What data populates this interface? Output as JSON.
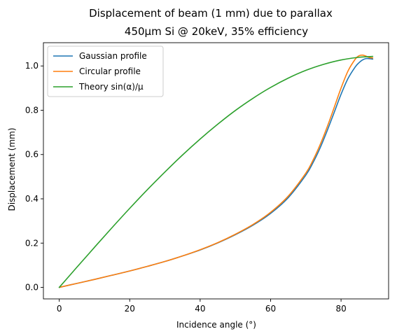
{
  "chart_data": {
    "type": "line",
    "title": "Displacement of beam (1 mm) due to parallax",
    "subtitle": "450µm Si @ 20keV, 35% efficiency",
    "xlabel": "Incidence angle (°)",
    "ylabel": "Displacement (mm)",
    "xlim": [
      -4.5,
      93.5
    ],
    "ylim": [
      -0.052,
      1.105
    ],
    "xticks": [
      0,
      20,
      40,
      60,
      80
    ],
    "yticks": [
      0.0,
      0.2,
      0.4,
      0.6,
      0.8,
      1.0
    ],
    "xtick_labels": [
      "0",
      "20",
      "40",
      "60",
      "80"
    ],
    "ytick_labels": [
      "0.0",
      "0.2",
      "0.4",
      "0.6",
      "0.8",
      "1.0"
    ],
    "grid": false,
    "legend_position": "top-left",
    "series": [
      {
        "name": "Gaussian profile",
        "color": "#1f77b4",
        "x": [
          0,
          5,
          10,
          15,
          20,
          25,
          30,
          35,
          40,
          45,
          50,
          55,
          60,
          65,
          70,
          72,
          74,
          76,
          78,
          80,
          82,
          84,
          85,
          86,
          87,
          88,
          89
        ],
        "y": [
          0.0,
          0.018,
          0.036,
          0.055,
          0.074,
          0.095,
          0.117,
          0.142,
          0.169,
          0.201,
          0.238,
          0.281,
          0.334,
          0.405,
          0.507,
          0.562,
          0.628,
          0.705,
          0.788,
          0.872,
          0.944,
          0.995,
          1.013,
          1.026,
          1.033,
          1.033,
          1.031
        ]
      },
      {
        "name": "Circular profile",
        "color": "#ff7f0e",
        "x": [
          0,
          5,
          10,
          15,
          20,
          25,
          30,
          35,
          40,
          45,
          50,
          55,
          60,
          65,
          70,
          72,
          74,
          76,
          78,
          80,
          82,
          84,
          85,
          86,
          87,
          88,
          89
        ],
        "y": [
          0.0,
          0.018,
          0.036,
          0.055,
          0.074,
          0.095,
          0.117,
          0.142,
          0.17,
          0.202,
          0.24,
          0.284,
          0.339,
          0.412,
          0.516,
          0.573,
          0.642,
          0.722,
          0.81,
          0.9,
          0.978,
          1.03,
          1.045,
          1.049,
          1.045,
          1.038,
          1.036
        ]
      },
      {
        "name": "Theory sin(α)/μ",
        "color": "#2ca02c",
        "x": [
          0,
          5,
          10,
          15,
          20,
          25,
          30,
          35,
          40,
          45,
          50,
          55,
          60,
          65,
          70,
          75,
          80,
          85,
          89
        ],
        "y": [
          0.0,
          0.091,
          0.181,
          0.27,
          0.357,
          0.441,
          0.521,
          0.598,
          0.67,
          0.737,
          0.799,
          0.854,
          0.903,
          0.945,
          0.98,
          1.007,
          1.027,
          1.039,
          1.043
        ]
      }
    ]
  }
}
